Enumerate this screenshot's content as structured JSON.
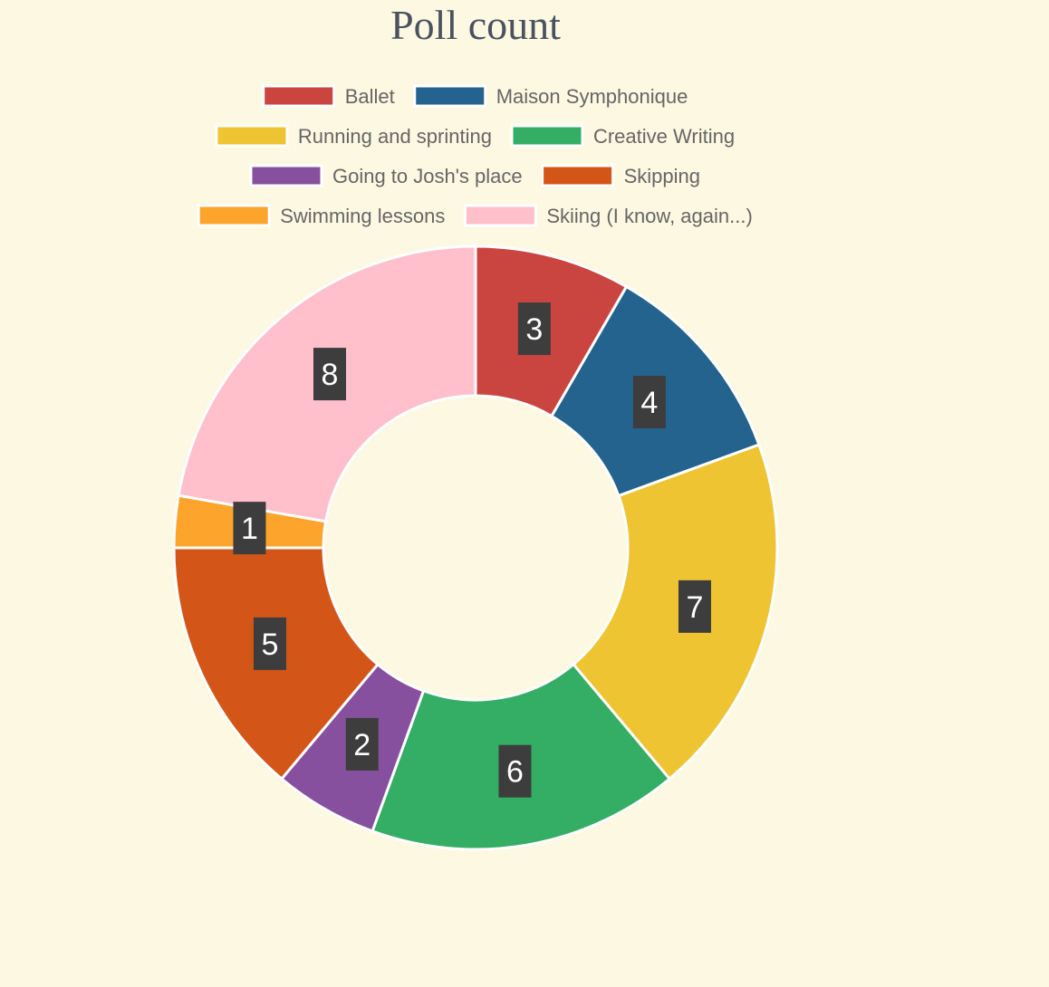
{
  "chart_data": {
    "type": "pie",
    "variant": "doughnut",
    "title": "Poll count",
    "legend_position": "top",
    "categories": [
      "Ballet",
      "Maison Symphonique",
      "Running and sprinting",
      "Creative Writing",
      "Going to Josh's place",
      "Skipping",
      "Swimming lessons",
      "Skiing (I know, again...)"
    ],
    "values": [
      3,
      4,
      7,
      6,
      2,
      5,
      1,
      8
    ],
    "colors": [
      "#cb4540",
      "#24638d",
      "#efc432",
      "#34ad65",
      "#87509e",
      "#d35618",
      "#fca42b",
      "#ffbfcb"
    ],
    "label_box_color": "#3d3d3d",
    "background": "#fdf8e1"
  }
}
